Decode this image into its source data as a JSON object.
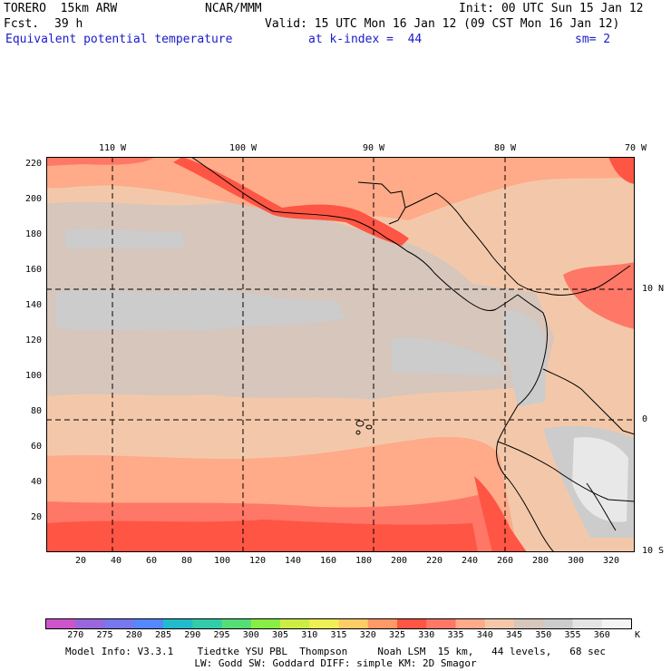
{
  "header": {
    "model": "TORERO  15km ARW",
    "org": "NCAR/MMM",
    "init": "Init: 00 UTC Sun 15 Jan 12",
    "fcst_label": "Fcst.",
    "fcst_value": "39 h",
    "valid": "Valid: 15 UTC Mon 16 Jan 12 (09 CST Mon 16 Jan 12)",
    "field": "Equivalent potential temperature",
    "level": "at k-index =  44",
    "smooth": "sm= 2"
  },
  "axes": {
    "y_ticks": [
      "220",
      "200",
      "180",
      "160",
      "140",
      "120",
      "100",
      "80",
      "60",
      "40",
      "20"
    ],
    "x_ticks": [
      "20",
      "40",
      "60",
      "80",
      "100",
      "120",
      "140",
      "160",
      "180",
      "200",
      "220",
      "240",
      "260",
      "280",
      "300",
      "320"
    ],
    "lon_labels": [
      "110 W",
      "100 W",
      "90 W",
      "80 W",
      "70 W"
    ],
    "lat_labels": [
      "10 N",
      "0",
      "10 S"
    ]
  },
  "colorbar": {
    "labels": [
      "270",
      "275",
      "280",
      "285",
      "290",
      "295",
      "300",
      "305",
      "310",
      "315",
      "320",
      "325",
      "330",
      "335",
      "340",
      "345",
      "350",
      "355",
      "360"
    ],
    "unit": "K",
    "colors": [
      "#cc55cc",
      "#9966dd",
      "#7777ee",
      "#5588ff",
      "#22bbcc",
      "#33ccaa",
      "#55dd77",
      "#88ee44",
      "#ccee44",
      "#eeee55",
      "#ffcc66",
      "#ff9966",
      "#ff5544",
      "#ff7766",
      "#ffaa88",
      "#f3c8aa",
      "#d6c6bc",
      "#cccccc",
      "#e4e4e4",
      "#f4f4f4"
    ]
  },
  "footer": {
    "line1": "Model Info: V3.3.1    Tiedtke YSU PBL  Thompson     Noah LSM  15 km,   44 levels,   68 sec",
    "line2": "LW: Godd SW: Goddard DIFF: simple KM: 2D Smagor"
  },
  "map_colors": {
    "c330": "#ff5544",
    "c335": "#ff7766",
    "c340": "#ffaa88",
    "c345": "#f3c8aa",
    "c350": "#d6c6bc",
    "c355": "#cccccc",
    "c360": "#e8e8e8",
    "c365": "#f4f4f4"
  }
}
